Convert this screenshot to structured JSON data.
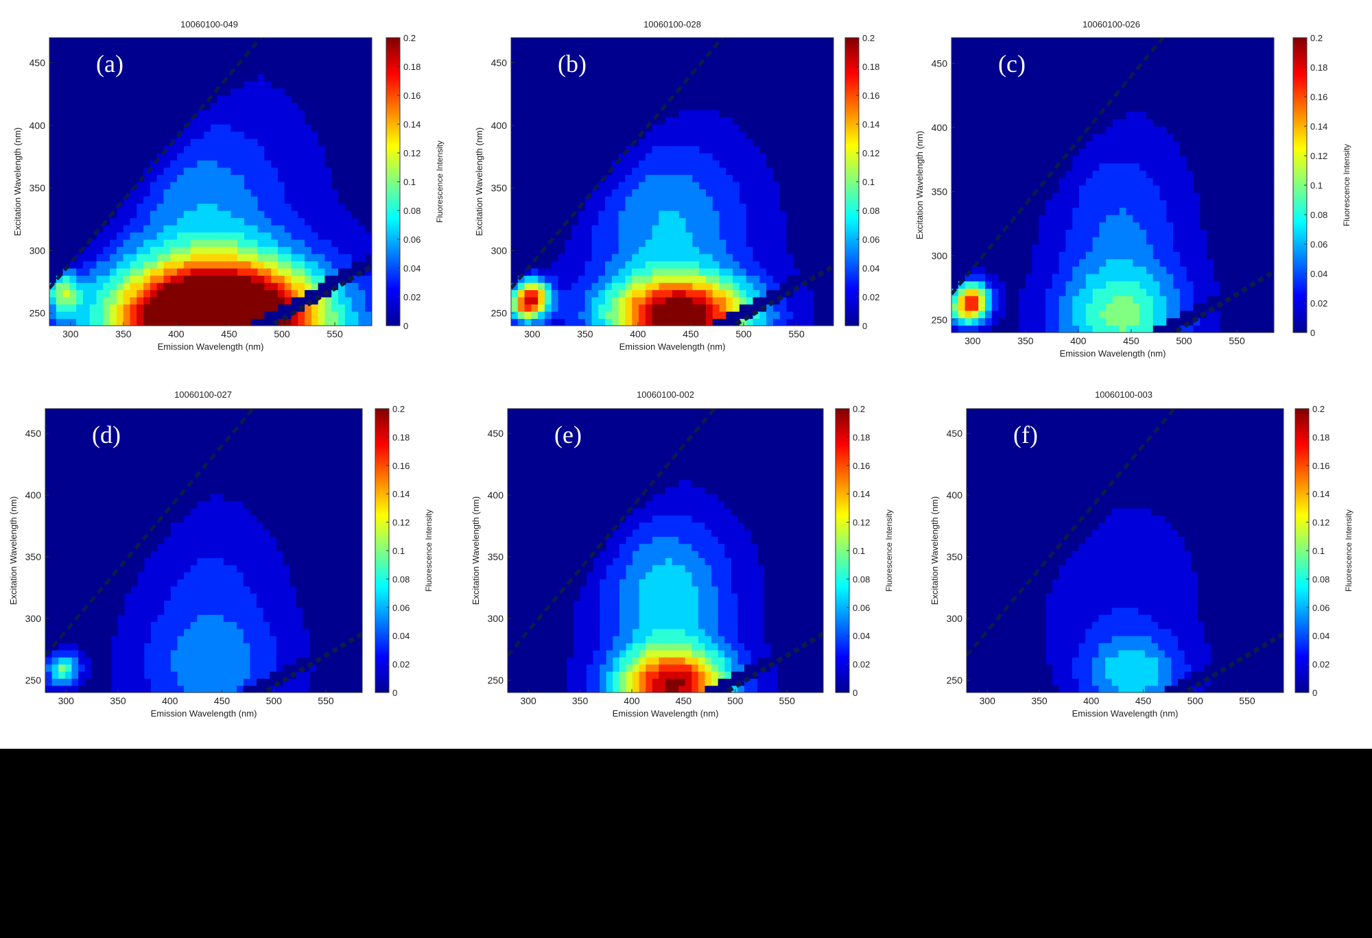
{
  "colormap": {
    "name": "jet",
    "stops": [
      "#00008f",
      "#0000ff",
      "#0080ff",
      "#00ffff",
      "#80ff80",
      "#ffff00",
      "#ff8000",
      "#ff0000",
      "#800000"
    ],
    "background": "#2a3a94"
  },
  "chart_data": [
    {
      "type": "heatmap",
      "panel_label": "(a)",
      "title": "10060100-049",
      "xlabel": "Emission Wavelength (nm)",
      "ylabel": "Excitation Wavelength (nm)",
      "colorbar_label": "Fluorescence Intensity",
      "xlim": [
        280,
        585
      ],
      "ylim": [
        240,
        470
      ],
      "clim": [
        0,
        0.2
      ],
      "xticks": [
        300,
        350,
        400,
        450,
        500,
        550
      ],
      "yticks": [
        250,
        300,
        350,
        400,
        450
      ],
      "colorbar_ticks": [
        "0",
        "0.02",
        "0.04",
        "0.06",
        "0.08",
        "0.1",
        "0.12",
        "0.14",
        "0.16",
        "0.18",
        "0.2"
      ],
      "peaks": [
        {
          "em": 440,
          "ex": 245,
          "intensity": 0.3,
          "sigma_em": 70,
          "sigma_ex": 32
        },
        {
          "em": 430,
          "ex": 330,
          "intensity": 0.05,
          "sigma_em": 55,
          "sigma_ex": 55
        },
        {
          "em": 290,
          "ex": 270,
          "intensity": 0.12,
          "sigma_em": 12,
          "sigma_ex": 12
        }
      ],
      "background_level": 0.012,
      "rayleigh_scatter_band": true
    },
    {
      "type": "heatmap",
      "panel_label": "(b)",
      "title": "10060100-028",
      "xlabel": "Emission Wavelength (nm)",
      "ylabel": "Excitation Wavelength (nm)",
      "colorbar_label": "",
      "xlim": [
        280,
        585
      ],
      "ylim": [
        240,
        470
      ],
      "clim": [
        0,
        0.2
      ],
      "xticks": [
        300,
        350,
        400,
        450,
        500,
        550
      ],
      "yticks": [
        250,
        300,
        350,
        400,
        450
      ],
      "colorbar_ticks": [
        "0",
        "0.02",
        "0.04",
        "0.06",
        "0.08",
        "0.1",
        "0.12",
        "0.14",
        "0.16",
        "0.18",
        "0.2"
      ],
      "peaks": [
        {
          "em": 440,
          "ex": 248,
          "intensity": 0.2,
          "sigma_em": 50,
          "sigma_ex": 22
        },
        {
          "em": 430,
          "ex": 320,
          "intensity": 0.06,
          "sigma_em": 55,
          "sigma_ex": 50
        },
        {
          "em": 295,
          "ex": 262,
          "intensity": 0.2,
          "sigma_em": 14,
          "sigma_ex": 12
        }
      ],
      "background_level": 0.008,
      "rayleigh_scatter_band": true
    },
    {
      "type": "heatmap",
      "panel_label": "(c)",
      "title": "10060100-026",
      "xlabel": "Emission Wavelength (nm)",
      "ylabel": "Excitation Wavelength (nm)",
      "colorbar_label": "Fluorescence Intensity",
      "xlim": [
        280,
        585
      ],
      "ylim": [
        240,
        470
      ],
      "clim": [
        0,
        0.2
      ],
      "xticks": [
        300,
        350,
        400,
        450,
        500,
        550
      ],
      "yticks": [
        250,
        300,
        350,
        400,
        450
      ],
      "colorbar_ticks": [
        "0",
        "0.02",
        "0.04",
        "0.06",
        "0.08",
        "0.1",
        "0.12",
        "0.14",
        "0.16",
        "0.18",
        "0.2"
      ],
      "peaks": [
        {
          "em": 440,
          "ex": 250,
          "intensity": 0.08,
          "sigma_em": 45,
          "sigma_ex": 28
        },
        {
          "em": 440,
          "ex": 320,
          "intensity": 0.045,
          "sigma_em": 45,
          "sigma_ex": 55
        },
        {
          "em": 295,
          "ex": 265,
          "intensity": 0.2,
          "sigma_em": 14,
          "sigma_ex": 12
        }
      ],
      "background_level": 0.006,
      "rayleigh_scatter_band": true
    },
    {
      "type": "heatmap",
      "panel_label": "(d)",
      "title": "10060100-027",
      "xlabel": "Emission Wavelength (nm)",
      "ylabel": "Excitation Wavelength (nm)",
      "colorbar_label": "Fluorescence Intensity",
      "xlim": [
        280,
        585
      ],
      "ylim": [
        240,
        470
      ],
      "clim": [
        0,
        0.2
      ],
      "xticks": [
        300,
        350,
        400,
        450,
        500,
        550
      ],
      "yticks": [
        250,
        300,
        350,
        400,
        450
      ],
      "colorbar_ticks": [
        "0",
        "0.02",
        "0.04",
        "0.06",
        "0.08",
        "0.1",
        "0.12",
        "0.14",
        "0.16",
        "0.18",
        "0.2"
      ],
      "peaks": [
        {
          "em": 440,
          "ex": 255,
          "intensity": 0.04,
          "sigma_em": 55,
          "sigma_ex": 35
        },
        {
          "em": 440,
          "ex": 320,
          "intensity": 0.03,
          "sigma_em": 50,
          "sigma_ex": 55
        },
        {
          "em": 295,
          "ex": 260,
          "intensity": 0.1,
          "sigma_em": 12,
          "sigma_ex": 10
        }
      ],
      "background_level": 0.006,
      "rayleigh_scatter_band": true
    },
    {
      "type": "heatmap",
      "panel_label": "(e)",
      "title": "10060100-002",
      "xlabel": "Emission Wavelength (nm)",
      "ylabel": "Excitation Wavelength (nm)",
      "colorbar_label": "Fluorescence Intensity",
      "xlim": [
        280,
        585
      ],
      "ylim": [
        240,
        470
      ],
      "clim": [
        0,
        0.2
      ],
      "xticks": [
        300,
        350,
        400,
        450,
        500,
        550
      ],
      "yticks": [
        250,
        300,
        350,
        400,
        450
      ],
      "colorbar_ticks": [
        "0",
        "0.02",
        "0.04",
        "0.06",
        "0.08",
        "0.1",
        "0.12",
        "0.14",
        "0.16",
        "0.18",
        "0.2"
      ],
      "peaks": [
        {
          "em": 440,
          "ex": 245,
          "intensity": 0.18,
          "sigma_em": 40,
          "sigma_ex": 22
        },
        {
          "em": 435,
          "ex": 320,
          "intensity": 0.07,
          "sigma_em": 45,
          "sigma_ex": 45
        }
      ],
      "background_level": 0.008,
      "rayleigh_scatter_band": true
    },
    {
      "type": "heatmap",
      "panel_label": "(f)",
      "title": "10060100-003",
      "xlabel": "Emission Wavelength (nm)",
      "ylabel": "Excitation Wavelength (nm)",
      "colorbar_label": "Fluorescence Intensity",
      "xlim": [
        280,
        585
      ],
      "ylim": [
        240,
        470
      ],
      "clim": [
        0,
        0.2
      ],
      "xticks": [
        300,
        350,
        400,
        450,
        500,
        550
      ],
      "yticks": [
        250,
        300,
        350,
        400,
        450
      ],
      "colorbar_ticks": [
        "0",
        "0.02",
        "0.04",
        "0.06",
        "0.08",
        "0.1",
        "0.12",
        "0.14",
        "0.16",
        "0.18",
        "0.2"
      ],
      "peaks": [
        {
          "em": 440,
          "ex": 255,
          "intensity": 0.065,
          "sigma_em": 35,
          "sigma_ex": 22
        },
        {
          "em": 430,
          "ex": 320,
          "intensity": 0.025,
          "sigma_em": 55,
          "sigma_ex": 55
        }
      ],
      "background_level": 0.006,
      "rayleigh_scatter_band": true
    }
  ]
}
